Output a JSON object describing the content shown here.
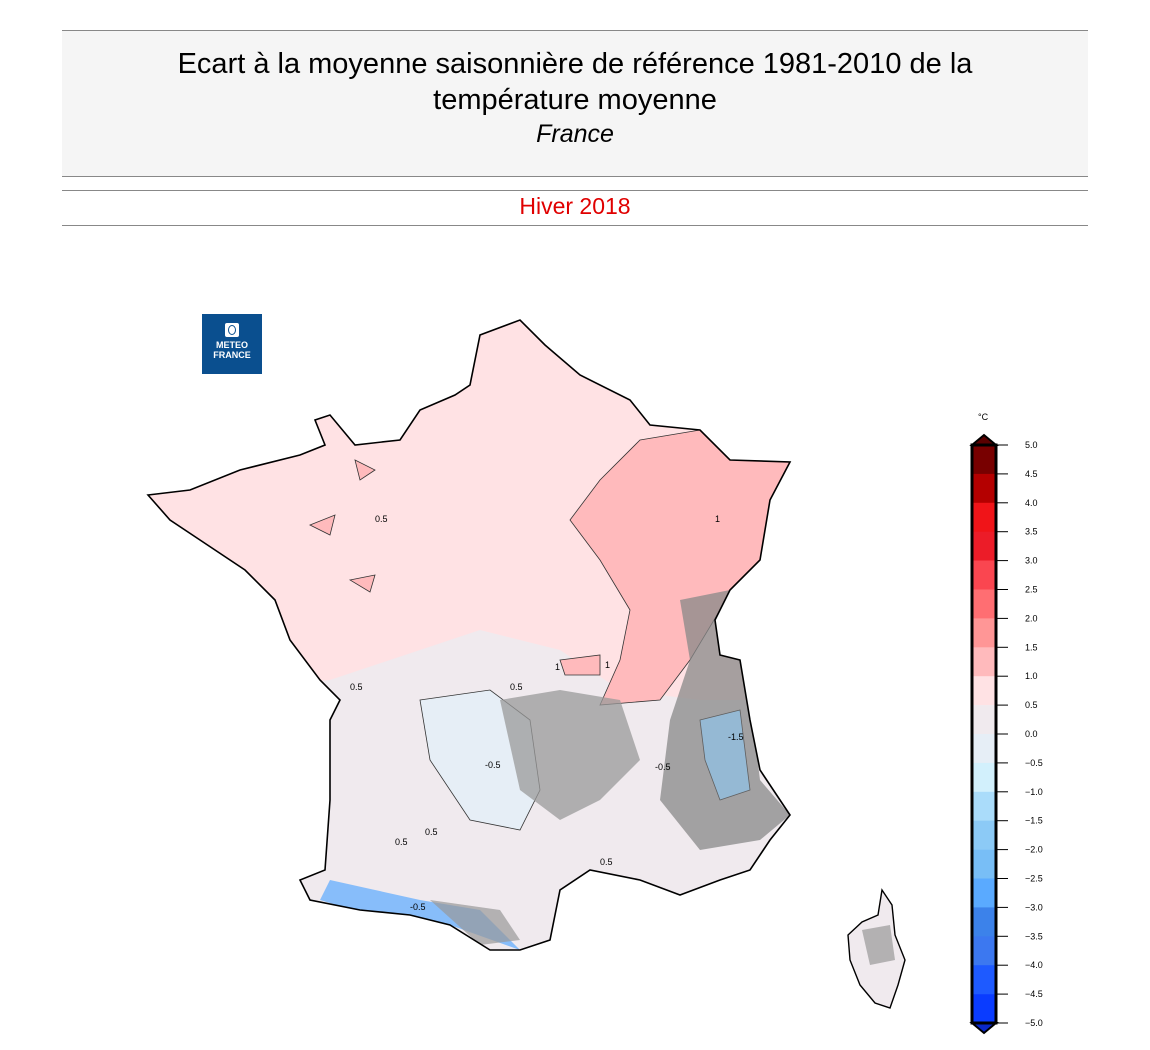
{
  "header": {
    "title": "Ecart à la moyenne saisonnière de référence 1981-2010 de la température moyenne",
    "region": "France",
    "season": "Hiver 2018"
  },
  "logo": {
    "text_line1": "METEO",
    "text_line2": "FRANCE",
    "color": "#0a4f8f"
  },
  "map": {
    "contour_labels": [
      "1",
      "1",
      "1",
      "0.5",
      "0.5",
      "0.5",
      "0.5",
      "0.5",
      "-0.5",
      "-0.5",
      "-1.5",
      "0.5",
      "-0.5"
    ]
  },
  "colorbar": {
    "unit": "°C",
    "range": [
      -5.0,
      5.0
    ],
    "ticks": [
      "5.0",
      "4.5",
      "4.0",
      "3.5",
      "3.0",
      "2.5",
      "2.0",
      "1.5",
      "1.0",
      "0.5",
      "0.0",
      "−0.5",
      "−1.0",
      "−1.5",
      "−2.0",
      "−2.5",
      "−3.0",
      "−3.5",
      "−4.0",
      "−4.5",
      "−5.0"
    ],
    "colors_top_to_bottom": [
      "#780000",
      "#b40000",
      "#f01418",
      "#ec1c28",
      "#fa4650",
      "#ff6e72",
      "#ff9696",
      "#ffbabc",
      "#ffe2e4",
      "#f0eaee",
      "#e6eef6",
      "#d2f0fc",
      "#aadcfa",
      "#8ccaf6",
      "#78bef6",
      "#5aaaff",
      "#3c82ea",
      "#3c78f0",
      "#1e5aff",
      "#0a3cff"
    ],
    "over_color": "#5a0000",
    "under_color": "#0a28c8"
  }
}
